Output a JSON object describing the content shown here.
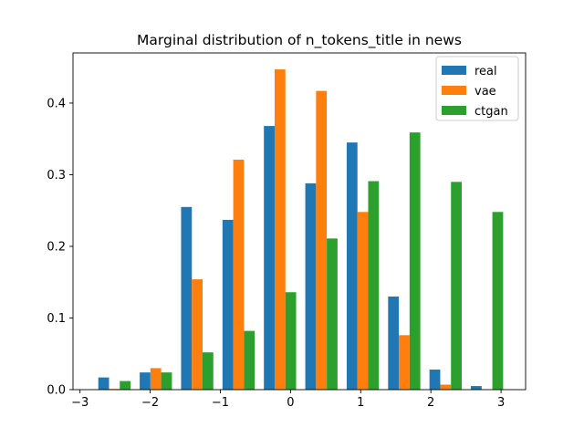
{
  "chart_data": {
    "type": "bar",
    "title": "Marginal distribution of n_tokens_title in news",
    "xlabel": "",
    "ylabel": "",
    "xlim": [
      -3.1,
      3.35
    ],
    "ylim": [
      0,
      0.47
    ],
    "xticks": [
      -3,
      -2,
      -1,
      0,
      1,
      2,
      3
    ],
    "xtick_labels": [
      "−3",
      "−2",
      "−1",
      "0",
      "1",
      "2",
      "3"
    ],
    "yticks": [
      0.0,
      0.1,
      0.2,
      0.3,
      0.4
    ],
    "ytick_labels": [
      "0.0",
      "0.1",
      "0.2",
      "0.3",
      "0.4"
    ],
    "grid": false,
    "legend_position": "top-right",
    "bin_centers": [
      -2.51,
      -1.92,
      -1.33,
      -0.74,
      -0.15,
      0.44,
      1.03,
      1.62,
      2.21,
      2.8
    ],
    "bar_width": 0.153,
    "series": [
      {
        "name": "real",
        "color": "#1f77b4",
        "values": [
          0.017,
          0.024,
          0.255,
          0.237,
          0.368,
          0.288,
          0.345,
          0.13,
          0.028,
          0.005
        ]
      },
      {
        "name": "vae",
        "color": "#ff7f0e",
        "values": [
          0.001,
          0.03,
          0.154,
          0.321,
          0.447,
          0.417,
          0.248,
          0.076,
          0.007,
          0.0
        ]
      },
      {
        "name": "ctgan",
        "color": "#2ca02c",
        "values": [
          0.012,
          0.024,
          0.052,
          0.082,
          0.136,
          0.211,
          0.291,
          0.359,
          0.29,
          0.248
        ]
      }
    ]
  }
}
